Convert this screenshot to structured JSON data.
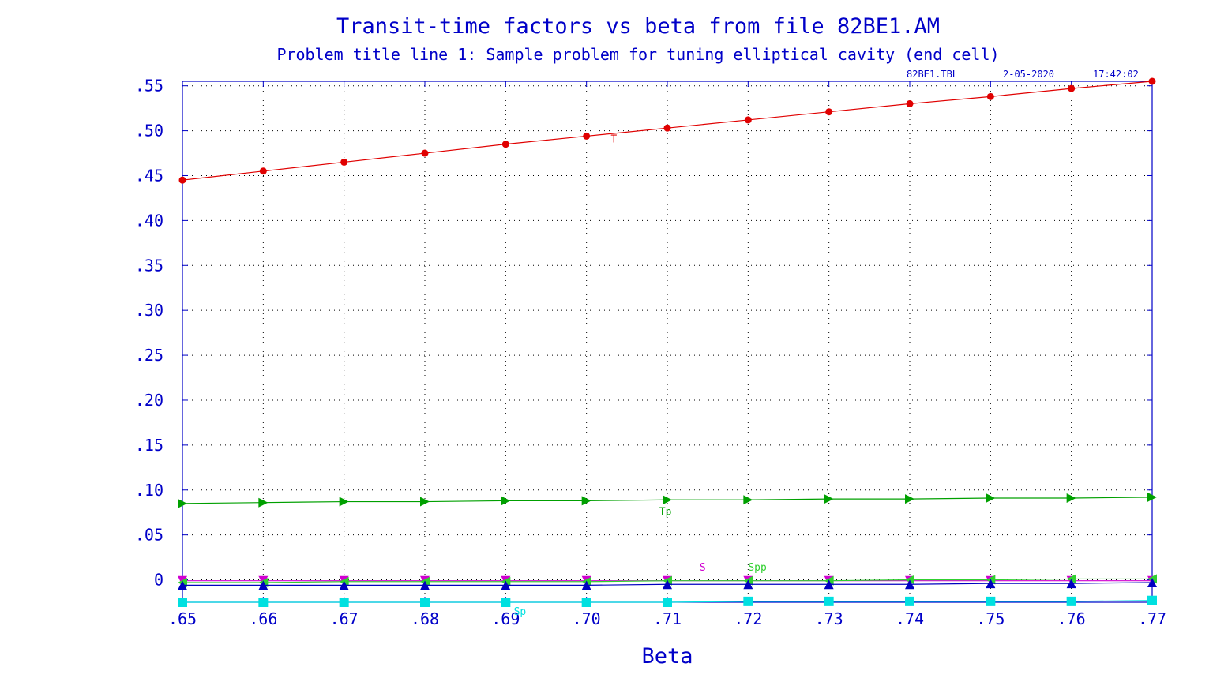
{
  "header": {
    "title": "Transit-time factors vs beta from file 82BE1.AM",
    "subtitle": "Problem title line 1: Sample problem for tuning elliptical cavity (end cell)",
    "file_stamp": "82BE1.TBL",
    "date_stamp": "2-05-2020",
    "time_stamp": "17:42:02"
  },
  "chart_data": {
    "type": "line",
    "title": "Transit-time factors vs beta from file 82BE1.AM",
    "subtitle": "Problem title line 1: Sample problem for tuning elliptical cavity (end cell)",
    "xlabel": "Beta",
    "ylabel": "",
    "xlim": [
      0.65,
      0.77
    ],
    "ylim": [
      -0.025,
      0.555
    ],
    "grid": true,
    "x": [
      0.65,
      0.66,
      0.67,
      0.68,
      0.69,
      0.7,
      0.71,
      0.72,
      0.73,
      0.74,
      0.75,
      0.76,
      0.77
    ],
    "x_tick_labels": [
      ".65",
      ".66",
      ".67",
      ".68",
      ".69",
      ".70",
      ".71",
      ".72",
      ".73",
      ".74",
      ".75",
      ".76",
      ".77"
    ],
    "y_ticks": [
      0,
      0.05,
      0.1,
      0.15,
      0.2,
      0.25,
      0.3,
      0.35,
      0.4,
      0.45,
      0.5,
      0.55
    ],
    "y_tick_labels": [
      "0",
      ".05",
      ".10",
      ".15",
      ".20",
      ".25",
      ".30",
      ".35",
      ".40",
      ".45",
      ".50",
      ".55"
    ],
    "series": [
      {
        "name": "T",
        "color": "#e00000",
        "marker": "circle",
        "values": [
          0.445,
          0.455,
          0.465,
          0.475,
          0.485,
          0.494,
          0.503,
          0.512,
          0.521,
          0.53,
          0.538,
          0.547,
          0.555
        ],
        "label_at": [
          0.703,
          0.487
        ]
      },
      {
        "name": "Tp",
        "color": "#00a000",
        "marker": "triangle-right",
        "values": [
          0.085,
          0.086,
          0.087,
          0.087,
          0.088,
          0.088,
          0.089,
          0.089,
          0.09,
          0.09,
          0.091,
          0.091,
          0.092
        ],
        "label_at": [
          0.709,
          0.072
        ]
      },
      {
        "name": "S",
        "color": "#d000d0",
        "marker": "triangle-down",
        "values": [
          -0.001,
          -0.001,
          -0.001,
          -0.001,
          -0.001,
          -0.001,
          -0.001,
          -0.001,
          -0.001,
          -0.001,
          -0.001,
          -0.001,
          -0.001
        ],
        "label_at": [
          0.714,
          0.01
        ]
      },
      {
        "name": "Spp",
        "color": "#30d030",
        "marker": "triangle-left",
        "values": [
          -0.003,
          -0.003,
          -0.002,
          -0.002,
          -0.002,
          -0.002,
          -0.001,
          -0.001,
          -0.001,
          0.0,
          0.0,
          0.001,
          0.001
        ],
        "label_at": [
          0.72,
          0.01
        ]
      },
      {
        "name": "",
        "color": "#0000c0",
        "marker": "triangle-up",
        "values": [
          -0.006,
          -0.006,
          -0.006,
          -0.006,
          -0.006,
          -0.006,
          -0.005,
          -0.005,
          -0.005,
          -0.005,
          -0.004,
          -0.004,
          -0.003
        ],
        "label_at": null
      },
      {
        "name": "Sp",
        "color": "#00e0e0",
        "marker": "square",
        "values": [
          -0.025,
          -0.025,
          -0.025,
          -0.025,
          -0.025,
          -0.025,
          -0.025,
          -0.024,
          -0.024,
          -0.024,
          -0.024,
          -0.024,
          -0.023
        ],
        "label_at": [
          0.691,
          -0.039
        ]
      }
    ]
  }
}
